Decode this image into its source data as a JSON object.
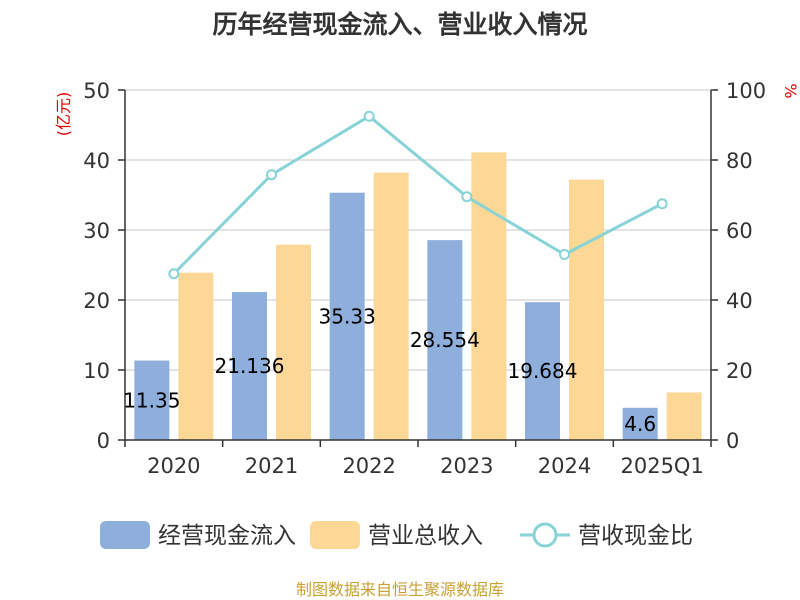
{
  "chart_data": {
    "type": "bar",
    "title": "历年经营现金流入、营业收入情况",
    "left_unit": "(亿元)",
    "right_unit": "%",
    "categories": [
      "2020",
      "2021",
      "2022",
      "2023",
      "2024",
      "2025Q1"
    ],
    "left_ylim": [
      0,
      50
    ],
    "left_ticks": [
      "0",
      "10",
      "20",
      "30",
      "40",
      "50"
    ],
    "right_ylim": [
      0,
      100
    ],
    "right_ticks": [
      "0",
      "20",
      "40",
      "60",
      "80",
      "100"
    ],
    "grid": true,
    "legend_position": "bottom",
    "series": [
      {
        "name": "经营现金流入",
        "type": "bar",
        "axis": "left",
        "color": "#8eaedb",
        "values": [
          11.35,
          21.136,
          35.33,
          28.554,
          19.684,
          4.6
        ],
        "labels": [
          "11.35",
          "21.136",
          "35.33",
          "28.554",
          "19.684",
          "4.6"
        ]
      },
      {
        "name": "营业总收入",
        "type": "bar",
        "axis": "left",
        "color": "#fdd795",
        "values": [
          23.9,
          27.9,
          38.2,
          41.1,
          37.2,
          6.8
        ]
      },
      {
        "name": "营收现金比",
        "type": "line",
        "axis": "right",
        "color": "#88d3d7",
        "values": [
          47.5,
          75.8,
          92.5,
          69.5,
          53.0,
          67.5
        ]
      }
    ]
  },
  "footer": {
    "source": "制图数据来自恒生聚源数据库"
  }
}
